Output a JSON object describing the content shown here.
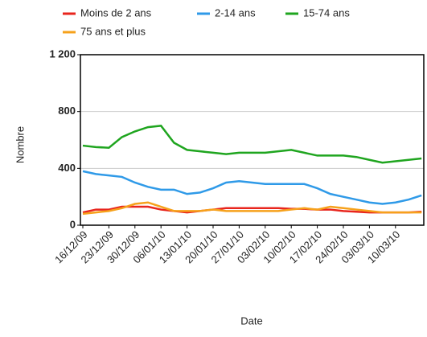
{
  "chart_data": {
    "type": "line",
    "x_label": "Date",
    "y_label": "Nombre",
    "categories": [
      "16/12/09",
      null,
      "23/12/09",
      null,
      "30/12/09",
      null,
      "06/01/10",
      null,
      "13/01/10",
      null,
      "20/01/10",
      null,
      "27/01/10",
      null,
      "03/02/10",
      null,
      "10/02/10",
      null,
      "17/02/10",
      null,
      "24/02/10",
      null,
      "03/03/10",
      null,
      "10/03/10",
      null,
      null
    ],
    "series": [
      {
        "name": "Moins de 2 ans",
        "color": "#e8251d",
        "values": [
          90,
          110,
          110,
          130,
          130,
          130,
          110,
          100,
          90,
          100,
          110,
          120,
          120,
          120,
          120,
          120,
          115,
          115,
          110,
          110,
          100,
          95,
          90,
          90,
          90,
          90,
          95
        ]
      },
      {
        "name": "2-14 ans",
        "color": "#2f9ae8",
        "values": [
          380,
          360,
          350,
          340,
          300,
          270,
          250,
          250,
          220,
          230,
          260,
          300,
          310,
          300,
          290,
          290,
          290,
          290,
          260,
          220,
          200,
          180,
          160,
          150,
          160,
          180,
          210
        ]
      },
      {
        "name": "15-74 ans",
        "color": "#1fa51f",
        "values": [
          560,
          550,
          545,
          620,
          660,
          690,
          700,
          580,
          530,
          520,
          510,
          500,
          510,
          510,
          510,
          520,
          530,
          510,
          490,
          490,
          490,
          480,
          460,
          440,
          450,
          460,
          470
        ]
      },
      {
        "name": "75 ans et plus",
        "color": "#f6a11b",
        "values": [
          80,
          90,
          100,
          120,
          150,
          160,
          130,
          100,
          100,
          100,
          110,
          100,
          100,
          100,
          100,
          100,
          110,
          120,
          110,
          130,
          120,
          110,
          100,
          90,
          90,
          90,
          90
        ]
      }
    ],
    "ylim": [
      0,
      1200
    ],
    "yticks": [
      0,
      400,
      800,
      {
        "value": 1200,
        "label": "1 200"
      }
    ],
    "grid": true
  }
}
